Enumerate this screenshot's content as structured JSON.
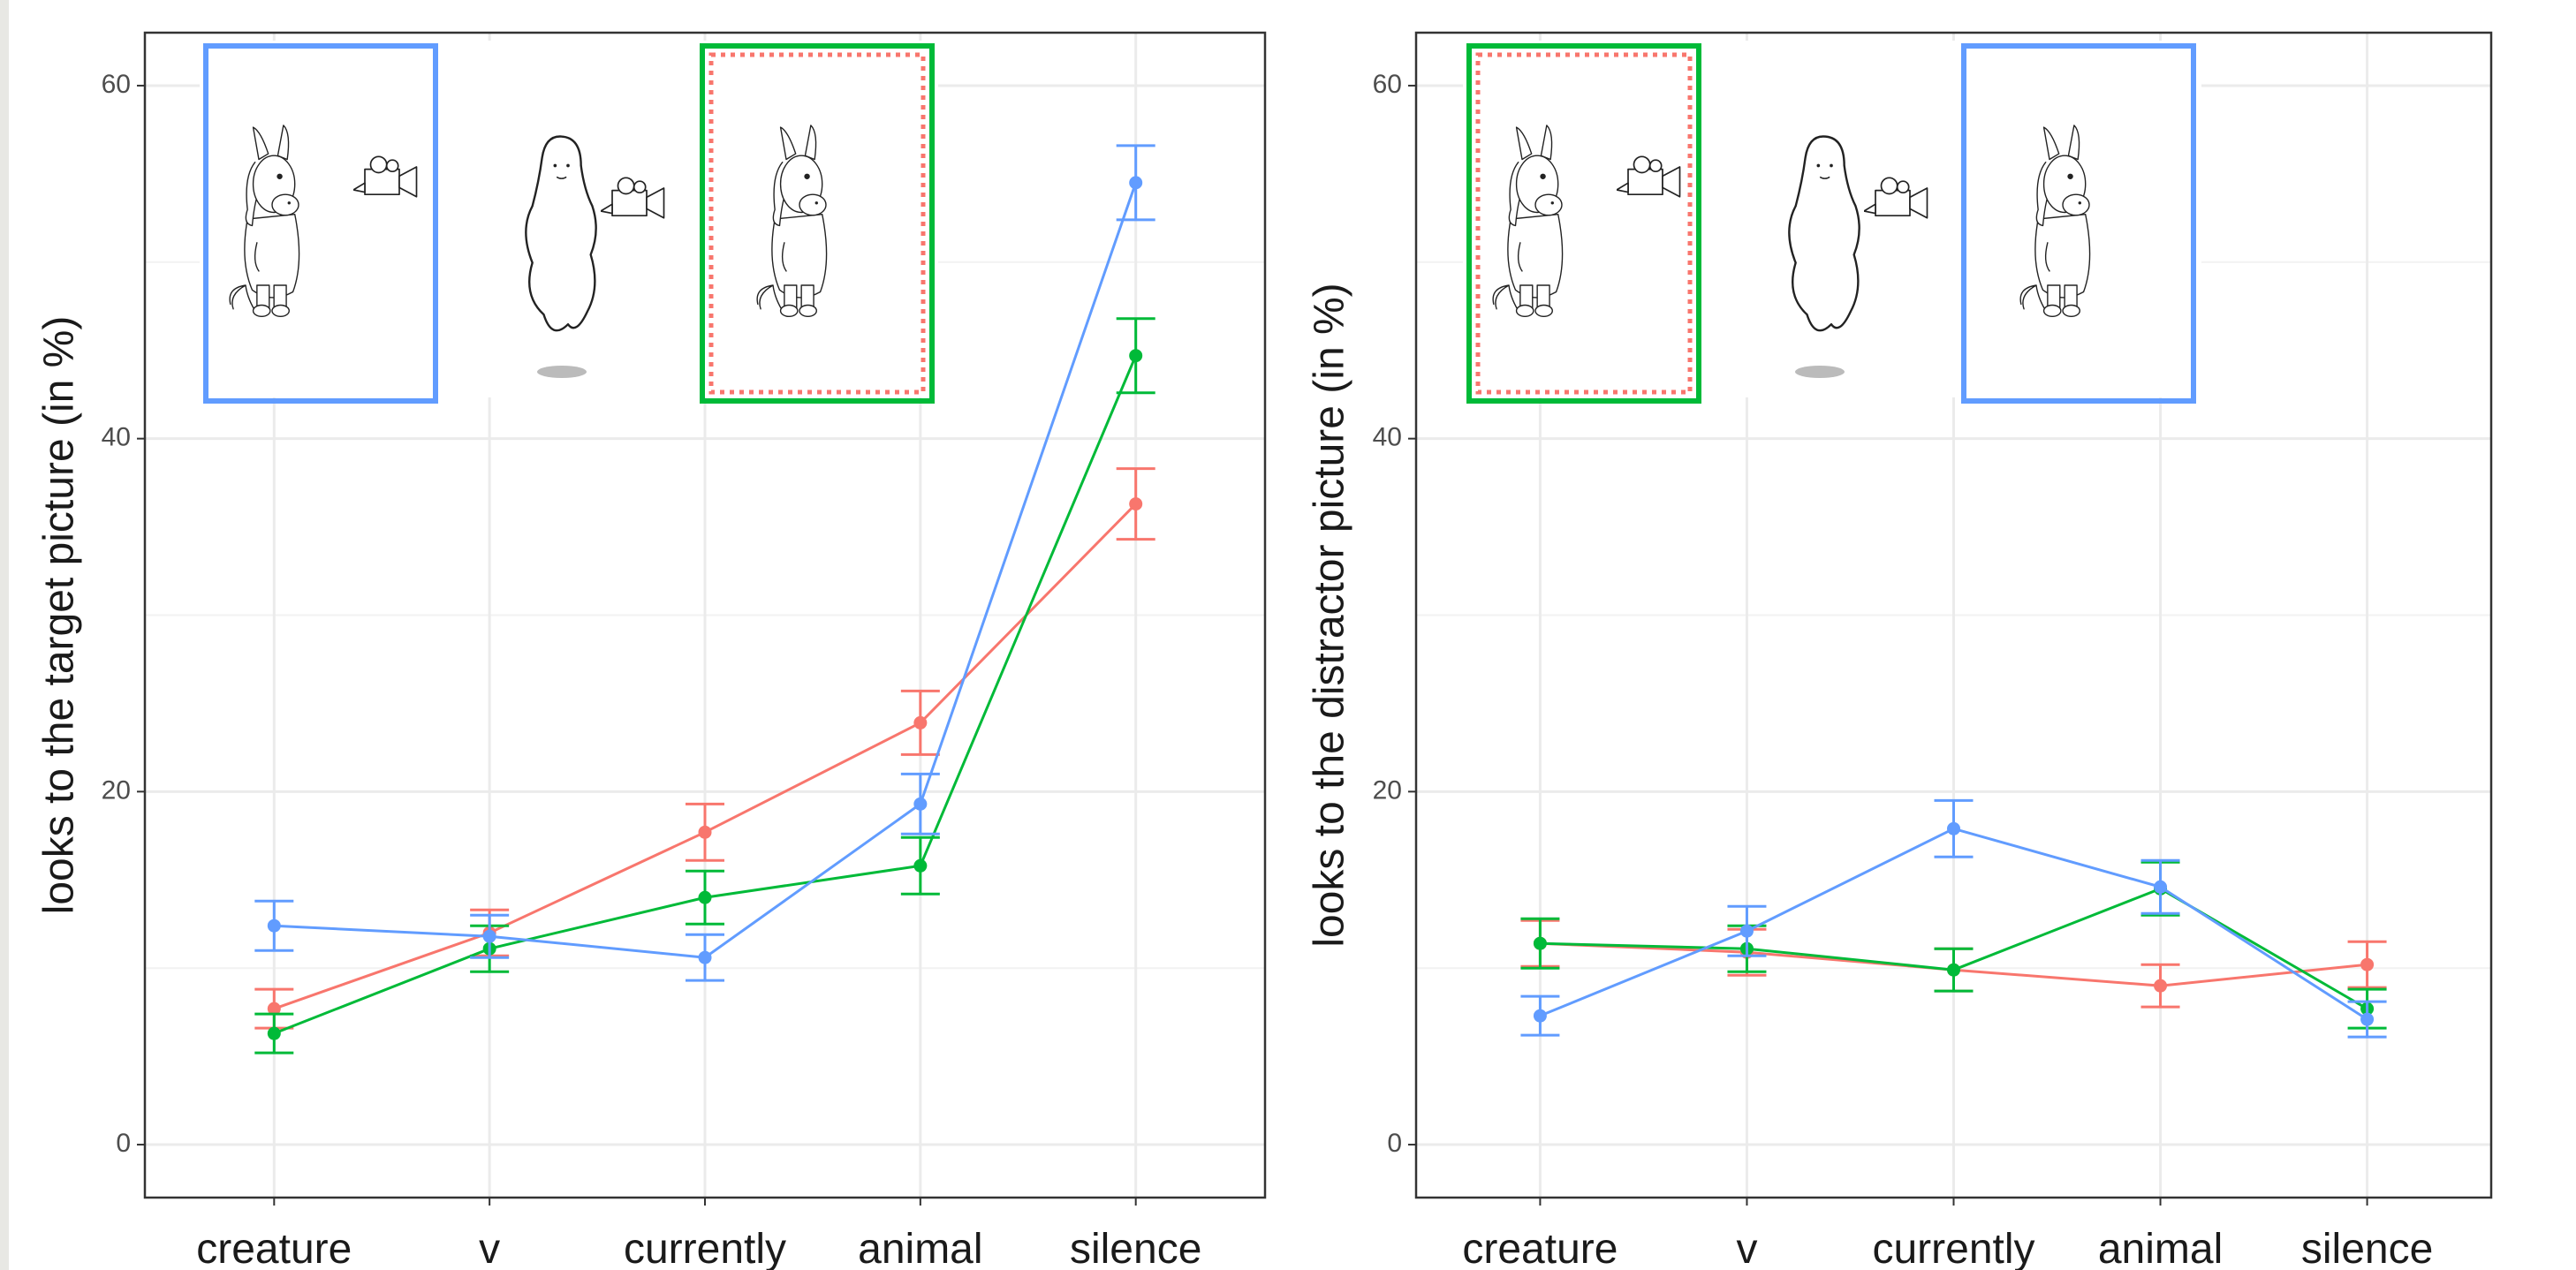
{
  "chart_data": [
    {
      "type": "line",
      "y_label": "looks to the target picture (in %)",
      "categories": [
        "creature",
        "v",
        "currently",
        "animal",
        "silence"
      ],
      "series": [
        {
          "color": "#F8766D",
          "values": [
            7.7,
            12.0,
            17.7,
            23.9,
            36.3
          ],
          "errors": [
            1.1,
            1.3,
            1.6,
            1.8,
            2.0
          ]
        },
        {
          "color": "#00BA38",
          "values": [
            6.3,
            11.1,
            14.0,
            15.8,
            44.7
          ],
          "errors": [
            1.1,
            1.3,
            1.5,
            1.6,
            2.1
          ]
        },
        {
          "color": "#619CFF",
          "values": [
            12.4,
            11.8,
            10.6,
            19.3,
            54.5
          ],
          "errors": [
            1.4,
            1.2,
            1.3,
            1.7,
            2.1
          ]
        }
      ],
      "ylim": [
        -3,
        63
      ],
      "yticks": [
        0,
        20,
        40,
        60
      ],
      "minor_grid": [
        10,
        30,
        50
      ],
      "grid": true
    },
    {
      "type": "line",
      "y_label": "looks to the distractor picture (in %)",
      "categories": [
        "creature",
        "v",
        "currently",
        "animal",
        "silence"
      ],
      "series": [
        {
          "color": "#F8766D",
          "values": [
            11.4,
            10.9,
            9.9,
            9.0,
            10.2
          ],
          "errors": [
            1.3,
            1.3,
            1.2,
            1.2,
            1.3
          ]
        },
        {
          "color": "#00BA38",
          "values": [
            11.4,
            11.1,
            9.9,
            14.5,
            7.7
          ],
          "errors": [
            1.4,
            1.3,
            1.2,
            1.5,
            1.1
          ]
        },
        {
          "color": "#619CFF",
          "values": [
            7.3,
            12.1,
            17.9,
            14.6,
            7.1
          ],
          "errors": [
            1.1,
            1.4,
            1.6,
            1.5,
            1.0
          ]
        }
      ],
      "ylim": [
        -3,
        63
      ],
      "yticks": [
        0,
        20,
        40,
        60
      ],
      "minor_grid": [
        10,
        30,
        50
      ],
      "grid": true
    }
  ]
}
